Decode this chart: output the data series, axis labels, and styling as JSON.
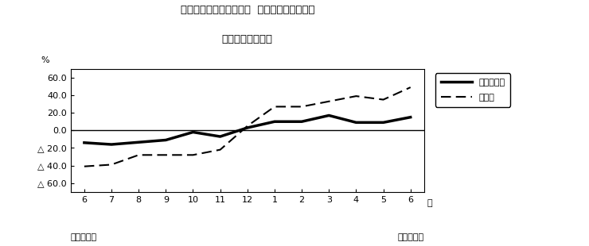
{
  "title_line1": "第２図　所定外労働時間  対前年同月比の推移",
  "title_line2": "（規模５人以上）",
  "xlabel_months": [
    "6",
    "7",
    "8",
    "9",
    "10",
    "11",
    "12",
    "1",
    "2",
    "3",
    "4",
    "5",
    "6"
  ],
  "xlabel_bottom_left": "平成２１年",
  "xlabel_bottom_right": "平成２２年",
  "xlabel_right_end": "月",
  "ylabel": "%",
  "ylim": [
    -70,
    70
  ],
  "yticks": [
    60.0,
    40.0,
    20.0,
    0.0,
    -20.0,
    -40.0,
    -60.0
  ],
  "series1_name": "調査産業計",
  "series1_values": [
    -14.0,
    -16.0,
    -13.5,
    -11.0,
    -2.0,
    -7.0,
    3.0,
    10.0,
    10.0,
    17.0,
    9.0,
    9.0,
    15.0
  ],
  "series2_name": "製造業",
  "series2_values": [
    -41.0,
    -39.0,
    -28.0,
    -28.0,
    -28.0,
    -22.0,
    5.0,
    27.0,
    27.0,
    33.0,
    39.0,
    35.0,
    49.0
  ],
  "series1_color": "#000000",
  "series2_color": "#000000",
  "background_color": "#ffffff",
  "fig_width": 7.4,
  "fig_height": 3.1,
  "dpi": 100
}
